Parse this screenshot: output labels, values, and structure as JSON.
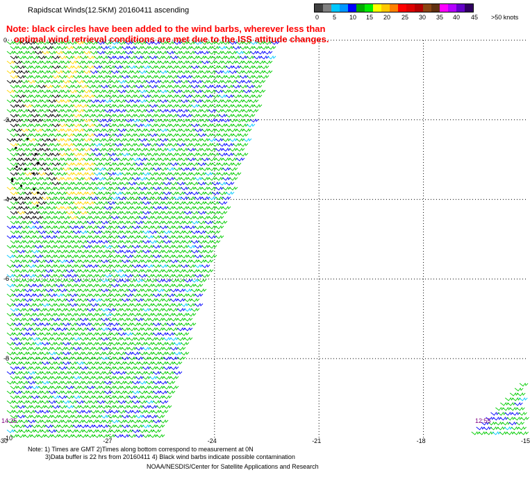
{
  "title": "Rapidscat Winds(12.5KM) 20160411 ascending",
  "note": {
    "line1": "Note: black circles have been added to the wind barbs, wherever less than",
    "line2": "   optimal wind retrieval conditions are met due to the ISS attitude changes."
  },
  "colorbar": {
    "colors": [
      "#404040",
      "#808080",
      "#00c8ff",
      "#0096ff",
      "#0000ff",
      "#00aa00",
      "#00ee00",
      "#ffff00",
      "#ffc800",
      "#ff8000",
      "#ff0000",
      "#dd0000",
      "#b40000",
      "#8b4513",
      "#603010",
      "#ff00ff",
      "#b400ff",
      "#6400c8",
      "#300060"
    ],
    "labels": [
      "0",
      "5",
      "10",
      "15",
      "20",
      "25",
      "30",
      "35",
      "40",
      "45",
      ">50 knots"
    ]
  },
  "axes": {
    "x_ticks": [
      "-30",
      "-27",
      "-24",
      "-21",
      "-18",
      "-15"
    ],
    "y_ticks": [
      "0",
      "-2",
      "-4",
      "-6",
      "-8",
      "-10"
    ]
  },
  "times": [
    "14:25",
    "12:55"
  ],
  "footer": {
    "line1": "Note: 1) Times are GMT 2)Times along bottom correspond to measurement at 0N",
    "line2": "3)Data buffer is 22 hrs from 20160411 4) Black wind barbs indicate possible contamination",
    "line3": "NOAA/NESDIS/Center for Satellite Applications and Research"
  },
  "map_data": {
    "lon_range": [
      -30,
      -15
    ],
    "lat_range": [
      -10,
      0
    ],
    "swaths": [
      {
        "name": "swath-1",
        "time": "14:25",
        "edge_top_lon": -22.1,
        "edge_bottom_lon": -25.5
      },
      {
        "name": "swath-2",
        "time": "12:55",
        "west_edge_top_lon": -15.1,
        "west_edge_bottom_lon": -16.8,
        "top_lat": -8.5
      }
    ],
    "dominant_wind_speed_knots": "15-20",
    "grid": "dotted"
  }
}
